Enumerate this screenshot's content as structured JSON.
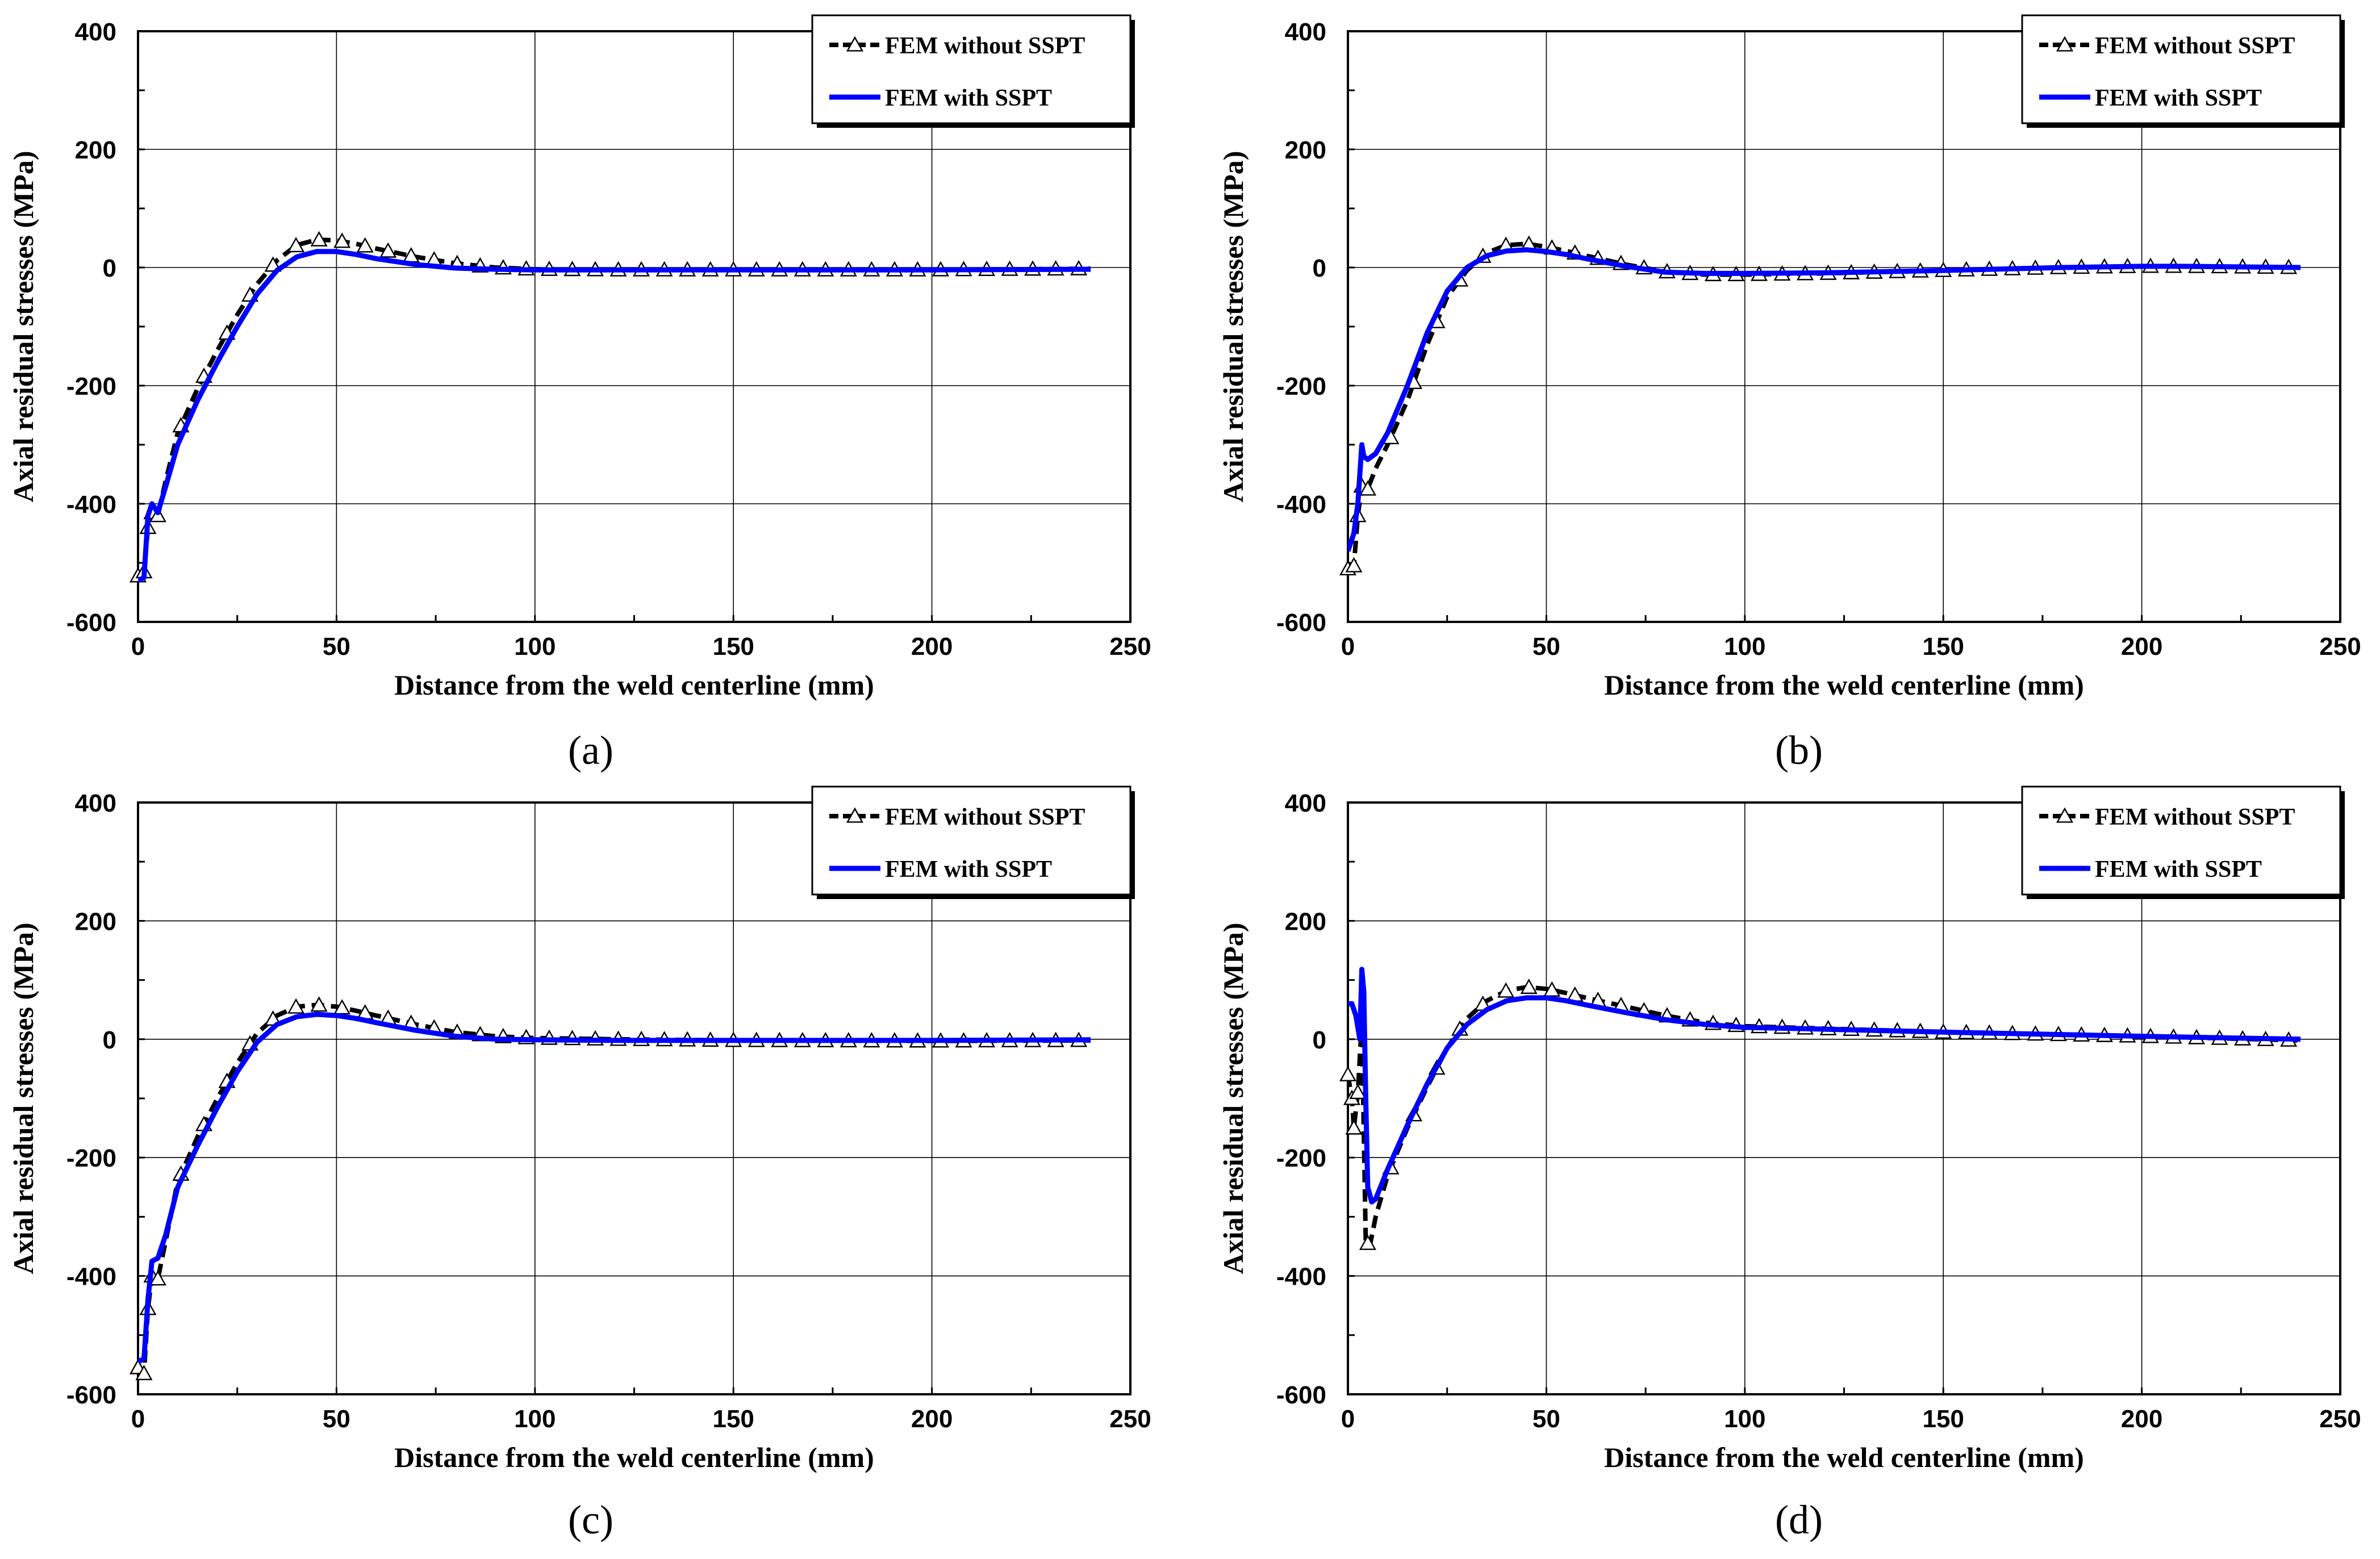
{
  "chart_data": [
    {
      "type": "line",
      "panel": "a",
      "xlabel": "Distance from the weld centerline (mm)",
      "ylabel": "Axial residual stresses (MPa)",
      "xlim": [
        0,
        250
      ],
      "ylim": [
        -600,
        400
      ],
      "xticks": [
        0,
        50,
        100,
        150,
        200,
        250
      ],
      "yticks": [
        -600,
        -400,
        -200,
        0,
        200,
        400
      ],
      "grid": true,
      "legend_position": "top-right",
      "series": [
        {
          "name": "FEM without SSPT",
          "style": "dashed-triangle",
          "color": "#000000",
          "x": [
            0,
            1.5,
            2.5,
            3.5,
            5,
            7,
            10,
            15,
            20,
            25,
            30,
            35,
            40,
            45,
            50,
            55,
            60,
            70,
            80,
            90,
            100,
            120,
            150,
            200,
            240
          ],
          "y": [
            -522,
            -515,
            -440,
            -415,
            -420,
            -360,
            -280,
            -205,
            -140,
            -80,
            -28,
            12,
            38,
            47,
            46,
            40,
            32,
            18,
            7,
            0,
            -3,
            -4,
            -4,
            -4,
            -2
          ]
        },
        {
          "name": "FEM with SSPT",
          "style": "solid",
          "color": "#0000ff",
          "x": [
            0,
            1.5,
            2.5,
            3.5,
            5,
            7,
            10,
            15,
            20,
            25,
            30,
            35,
            40,
            45,
            50,
            55,
            60,
            70,
            80,
            90,
            100,
            120,
            150,
            200,
            240
          ],
          "y": [
            -530,
            -525,
            -420,
            -400,
            -415,
            -370,
            -300,
            -225,
            -160,
            -100,
            -45,
            -5,
            18,
            27,
            27,
            22,
            15,
            5,
            -1,
            -3,
            -4,
            -4,
            -4,
            -4,
            -3
          ]
        }
      ]
    },
    {
      "type": "line",
      "panel": "b",
      "xlabel": "Distance from the weld centerline (mm)",
      "ylabel": "Axial residual stresses (MPa)",
      "xlim": [
        0,
        250
      ],
      "ylim": [
        -600,
        400
      ],
      "xticks": [
        0,
        50,
        100,
        150,
        200,
        250
      ],
      "yticks": [
        -600,
        -400,
        -200,
        0,
        200,
        400
      ],
      "grid": true,
      "legend_position": "top-right",
      "series": [
        {
          "name": "FEM without SSPT",
          "style": "dashed-triangle",
          "color": "#000000",
          "x": [
            0,
            1.5,
            2.5,
            3.5,
            5,
            7,
            10,
            15,
            20,
            25,
            30,
            35,
            40,
            45,
            50,
            55,
            60,
            70,
            80,
            90,
            100,
            120,
            150,
            180,
            200,
            210,
            240
          ],
          "y": [
            -510,
            -505,
            -420,
            -370,
            -375,
            -340,
            -300,
            -225,
            -130,
            -50,
            -5,
            25,
            38,
            40,
            35,
            28,
            20,
            5,
            -7,
            -12,
            -12,
            -10,
            -5,
            0,
            2,
            2,
            0
          ]
        },
        {
          "name": "FEM with SSPT",
          "style": "solid",
          "color": "#0000ff",
          "x": [
            0,
            1.5,
            2.5,
            3.5,
            4,
            5,
            7,
            10,
            15,
            20,
            25,
            30,
            35,
            40,
            45,
            50,
            55,
            60,
            70,
            80,
            90,
            100,
            120,
            150,
            180,
            200,
            210,
            240
          ],
          "y": [
            -480,
            -450,
            -400,
            -300,
            -320,
            -325,
            -315,
            -280,
            -200,
            -110,
            -40,
            0,
            20,
            28,
            30,
            27,
            22,
            15,
            2,
            -8,
            -10,
            -10,
            -9,
            -5,
            0,
            2,
            2,
            0
          ]
        }
      ]
    },
    {
      "type": "line",
      "panel": "c",
      "xlabel": "Distance from the weld centerline (mm)",
      "ylabel": "Axial residual stresses (MPa)",
      "xlim": [
        0,
        250
      ],
      "ylim": [
        -600,
        400
      ],
      "xticks": [
        0,
        50,
        100,
        150,
        200,
        250
      ],
      "yticks": [
        -600,
        -400,
        -200,
        0,
        200,
        400
      ],
      "grid": true,
      "legend_position": "top-right",
      "series": [
        {
          "name": "FEM without SSPT",
          "style": "dashed-triangle",
          "color": "#000000",
          "x": [
            0,
            1.5,
            2.5,
            3.5,
            5,
            7,
            10,
            15,
            20,
            25,
            30,
            35,
            40,
            45,
            50,
            55,
            60,
            70,
            80,
            90,
            100,
            120,
            150,
            200,
            240
          ],
          "y": [
            -555,
            -565,
            -455,
            -400,
            -405,
            -340,
            -240,
            -165,
            -100,
            -40,
            10,
            40,
            55,
            58,
            55,
            48,
            40,
            25,
            12,
            5,
            2,
            0,
            -2,
            -3,
            -2
          ]
        },
        {
          "name": "FEM with SSPT",
          "style": "solid",
          "color": "#0000ff",
          "x": [
            0,
            1.5,
            2.5,
            3.5,
            5,
            7,
            10,
            15,
            20,
            25,
            30,
            35,
            40,
            45,
            50,
            55,
            60,
            70,
            80,
            90,
            100,
            120,
            150,
            200,
            240
          ],
          "y": [
            -545,
            -540,
            -440,
            -375,
            -370,
            -330,
            -250,
            -180,
            -115,
            -55,
            -5,
            25,
            38,
            42,
            40,
            35,
            28,
            15,
            5,
            0,
            -1,
            -2,
            -2,
            -2,
            -1
          ]
        }
      ]
    },
    {
      "type": "line",
      "panel": "d",
      "xlabel": "Distance from the weld centerline (mm)",
      "ylabel": "Axial residual stresses (MPa)",
      "xlim": [
        0,
        250
      ],
      "ylim": [
        -600,
        400
      ],
      "xticks": [
        0,
        50,
        100,
        150,
        200,
        250
      ],
      "yticks": [
        -600,
        -400,
        -200,
        0,
        200,
        400
      ],
      "grid": true,
      "legend_position": "top-right",
      "series": [
        {
          "name": "FEM without SSPT",
          "style": "dashed-triangle",
          "color": "#000000",
          "x": [
            0,
            1,
            1.5,
            2.5,
            3.5,
            4.5,
            5.5,
            7,
            10,
            15,
            20,
            25,
            30,
            35,
            40,
            45,
            50,
            55,
            60,
            70,
            80,
            90,
            100,
            120,
            150,
            200,
            240
          ],
          "y": [
            -60,
            -100,
            -150,
            -90,
            30,
            -340,
            -350,
            -300,
            -230,
            -150,
            -80,
            -15,
            35,
            65,
            82,
            88,
            85,
            78,
            70,
            55,
            40,
            28,
            22,
            18,
            12,
            5,
            -2
          ]
        },
        {
          "name": "FEM with SSPT",
          "style": "solid",
          "color": "#0000ff",
          "x": [
            0,
            1,
            2,
            3,
            3.5,
            4,
            4.5,
            5,
            6,
            7,
            10,
            15,
            20,
            25,
            30,
            35,
            40,
            45,
            50,
            55,
            60,
            70,
            80,
            90,
            100,
            120,
            150,
            200,
            240
          ],
          "y": [
            60,
            60,
            40,
            0,
            118,
            80,
            -100,
            -250,
            -275,
            -270,
            -220,
            -145,
            -75,
            -15,
            25,
            50,
            65,
            70,
            70,
            65,
            58,
            45,
            33,
            25,
            20,
            17,
            12,
            5,
            0
          ]
        }
      ]
    }
  ],
  "panel_labels": [
    "(a)",
    "(b)",
    "(c)",
    "(d)"
  ]
}
